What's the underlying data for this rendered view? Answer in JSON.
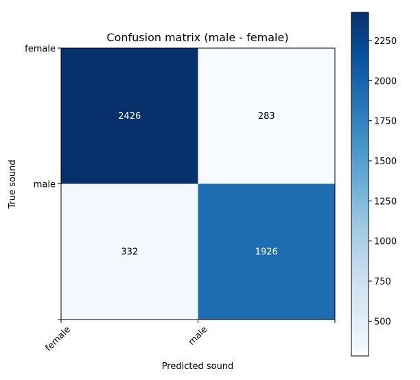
{
  "chart_data": {
    "type": "heatmap",
    "title": "Confusion matrix (male - female)",
    "xlabel": "Predicted sound",
    "ylabel": "True sound",
    "x_categories": [
      "female",
      "male"
    ],
    "y_categories": [
      "female",
      "male"
    ],
    "values": [
      [
        2426,
        283
      ],
      [
        332,
        1926
      ]
    ],
    "colormap": "Blues",
    "colorbar": {
      "ticks": [
        500,
        750,
        1000,
        1250,
        1500,
        1750,
        2000,
        2250
      ],
      "range": [
        283,
        2426
      ]
    },
    "colors": {
      "low": "#f7fbff",
      "high": "#08306b",
      "text_light": "#ffffff",
      "text_dark": "#000000"
    }
  }
}
